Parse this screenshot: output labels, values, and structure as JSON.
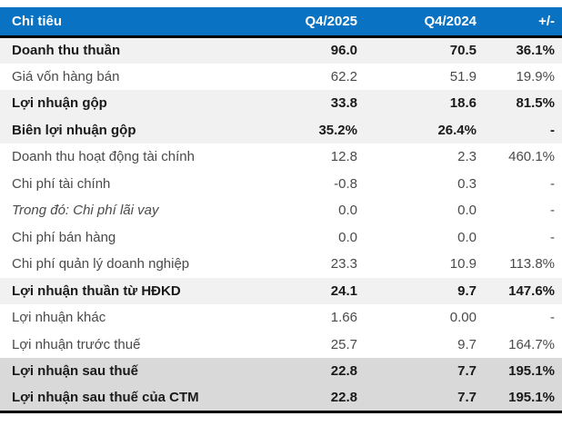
{
  "chart_data": {
    "type": "table",
    "columns": [
      "Chỉ tiêu",
      "Q4/2025",
      "Q4/2024",
      "+/-"
    ],
    "rows": [
      {
        "label": "Doanh thu thuần",
        "q4_2025": "96.0",
        "q4_2024": "70.5",
        "change": "36.1%",
        "bold": true,
        "italic": false,
        "background": "light"
      },
      {
        "label": "Giá vốn hàng bán",
        "q4_2025": "62.2",
        "q4_2024": "51.9",
        "change": "19.9%",
        "bold": false,
        "italic": false,
        "background": "none"
      },
      {
        "label": "Lợi nhuận gộp",
        "q4_2025": "33.8",
        "q4_2024": "18.6",
        "change": "81.5%",
        "bold": true,
        "italic": false,
        "background": "light"
      },
      {
        "label": "Biên lợi nhuận gộp",
        "q4_2025": "35.2%",
        "q4_2024": "26.4%",
        "change": "-",
        "bold": true,
        "italic": false,
        "background": "light"
      },
      {
        "label": "Doanh thu hoạt động tài chính",
        "q4_2025": "12.8",
        "q4_2024": "2.3",
        "change": "460.1%",
        "bold": false,
        "italic": false,
        "background": "none"
      },
      {
        "label": "Chi phí tài chính",
        "q4_2025": "-0.8",
        "q4_2024": "0.3",
        "change": "-",
        "bold": false,
        "italic": false,
        "background": "none"
      },
      {
        "label": "Trong đó: Chi phí lãi vay",
        "q4_2025": "0.0",
        "q4_2024": "0.0",
        "change": "-",
        "bold": false,
        "italic": true,
        "background": "none"
      },
      {
        "label": "Chi phí bán hàng",
        "q4_2025": "0.0",
        "q4_2024": "0.0",
        "change": "-",
        "bold": false,
        "italic": false,
        "background": "none"
      },
      {
        "label": "Chi phí quản lý doanh nghiệp",
        "q4_2025": "23.3",
        "q4_2024": "10.9",
        "change": "113.8%",
        "bold": false,
        "italic": false,
        "background": "none"
      },
      {
        "label": "Lợi nhuận thuần từ HĐKD",
        "q4_2025": "24.1",
        "q4_2024": "9.7",
        "change": "147.6%",
        "bold": true,
        "italic": false,
        "background": "light"
      },
      {
        "label": "Lợi nhuận khác",
        "q4_2025": "1.66",
        "q4_2024": "0.00",
        "change": "-",
        "bold": false,
        "italic": false,
        "background": "none"
      },
      {
        "label": "Lợi nhuận trước thuế",
        "q4_2025": "25.7",
        "q4_2024": "9.7",
        "change": "164.7%",
        "bold": false,
        "italic": false,
        "background": "none"
      },
      {
        "label": "Lợi nhuận sau thuế",
        "q4_2025": "22.8",
        "q4_2024": "7.7",
        "change": "195.1%",
        "bold": true,
        "italic": false,
        "background": "dark"
      },
      {
        "label": "Lợi nhuận sau thuế của CTM",
        "q4_2025": "22.8",
        "q4_2024": "7.7",
        "change": "195.1%",
        "bold": true,
        "italic": false,
        "background": "dark"
      }
    ]
  },
  "colors": {
    "header_bg": "#0a72c2",
    "header_text": "#ffffff",
    "row_light_bg": "#f1f1f1",
    "row_dark_bg": "#d9d9d9",
    "border": "#000000",
    "text_regular": "#4a4a4a",
    "text_bold": "#1a1a1a"
  }
}
